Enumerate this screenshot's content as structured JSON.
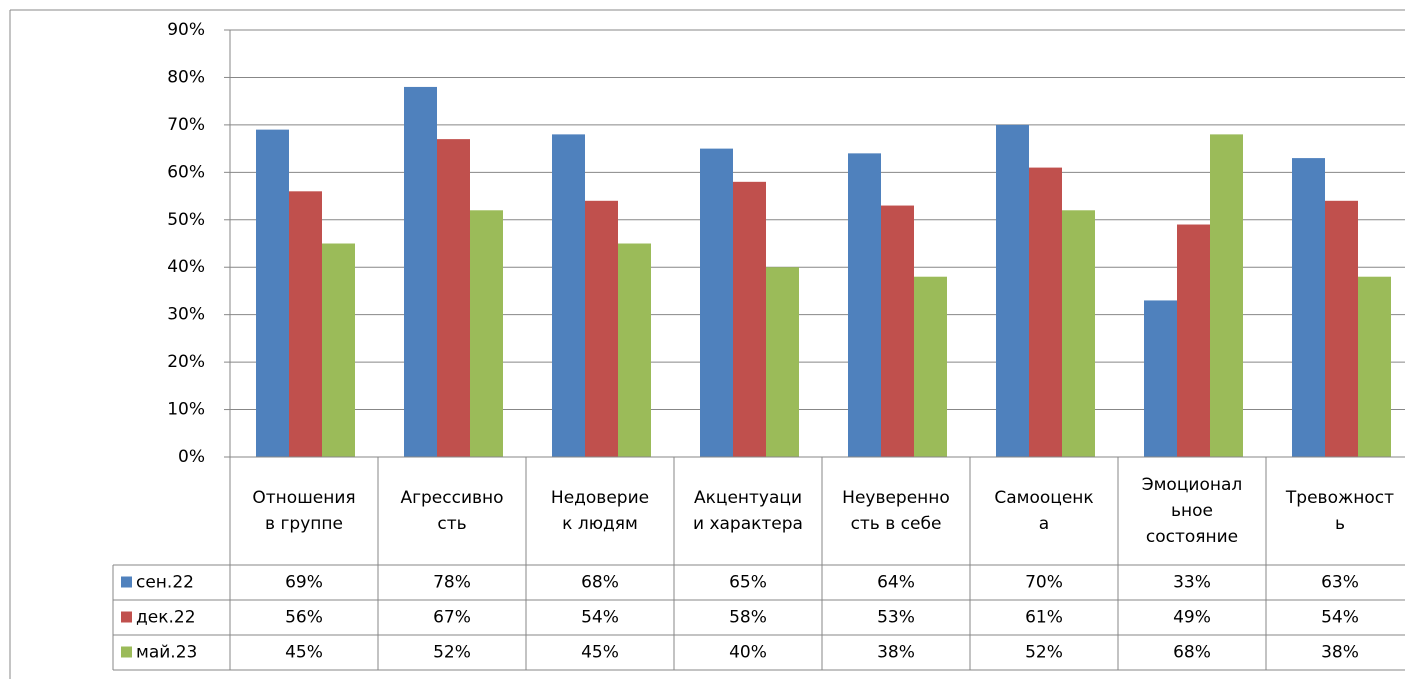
{
  "chart_data": {
    "type": "bar",
    "categories": [
      "Отношения\nв группе",
      "Агрессивно\nсть",
      "Недоверие\nк людям",
      "Акцентуаци\nи характера",
      "Неуверенно\nсть в себе",
      "Самооценк\nа",
      "Эмоционал\nьное\nсостояние",
      "Тревожност\nь"
    ],
    "series": [
      {
        "name": "сен.22",
        "color": "#4f81bd",
        "values": [
          69,
          78,
          68,
          65,
          64,
          70,
          33,
          63
        ],
        "value_labels": [
          "69%",
          "78%",
          "68%",
          "65%",
          "64%",
          "70%",
          "33%",
          "63%"
        ]
      },
      {
        "name": "дек.22",
        "color": "#c0504d",
        "values": [
          56,
          67,
          54,
          58,
          53,
          61,
          49,
          54
        ],
        "value_labels": [
          "56%",
          "67%",
          "54%",
          "58%",
          "53%",
          "61%",
          "49%",
          "54%"
        ]
      },
      {
        "name": "май.23",
        "color": "#9bbb59",
        "values": [
          45,
          52,
          45,
          40,
          38,
          52,
          68,
          38
        ],
        "value_labels": [
          "45%",
          "52%",
          "45%",
          "40%",
          "38%",
          "52%",
          "68%",
          "38%"
        ]
      }
    ],
    "ylim": [
      0,
      90
    ],
    "yticks": [
      {
        "value": 0,
        "label": "0%"
      },
      {
        "value": 10,
        "label": "10%"
      },
      {
        "value": 20,
        "label": "20%"
      },
      {
        "value": 30,
        "label": "30%"
      },
      {
        "value": 40,
        "label": "40%"
      },
      {
        "value": 50,
        "label": "50%"
      },
      {
        "value": 60,
        "label": "60%"
      },
      {
        "value": 70,
        "label": "70%"
      },
      {
        "value": 80,
        "label": "80%"
      },
      {
        "value": 90,
        "label": "90%"
      }
    ],
    "grid": true
  }
}
